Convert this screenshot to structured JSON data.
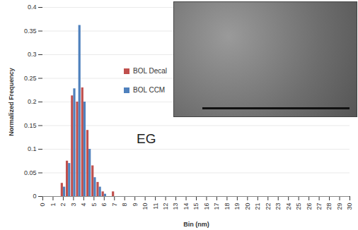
{
  "chart_data": {
    "type": "bar",
    "x_label": "Bin (nm)",
    "y_label": "Normalized Frequency",
    "annotations": [
      "EG"
    ],
    "x": [
      2,
      2.5,
      3,
      3.5,
      4,
      4.5,
      5,
      5.5,
      6,
      6.5,
      7
    ],
    "series": [
      {
        "name": "BOL Decal",
        "color": "#c0504d",
        "values": [
          0.028,
          0.075,
          0.213,
          0.2,
          0.23,
          0.14,
          0.065,
          0.03,
          0.01,
          0,
          0.01
        ]
      },
      {
        "name": "BOL CCM",
        "color": "#4f81bd",
        "values": [
          0.02,
          0.07,
          0.228,
          0.362,
          0.2,
          0.1,
          0.04,
          0.02,
          0.005,
          0,
          0
        ]
      }
    ],
    "xlim": [
      0,
      30
    ],
    "xticks": [
      0,
      1,
      2,
      3,
      4,
      5,
      6,
      7,
      8,
      9,
      10,
      11,
      12,
      13,
      14,
      15,
      16,
      17,
      18,
      19,
      20,
      21,
      22,
      23,
      24,
      25,
      26,
      27,
      28,
      29,
      30
    ],
    "ylim": [
      0,
      0.4
    ],
    "yticks": [
      0,
      0.05,
      0.1,
      0.15,
      0.2,
      0.25,
      0.3,
      0.35,
      0.4
    ],
    "grid": true,
    "legend": "top-left"
  }
}
